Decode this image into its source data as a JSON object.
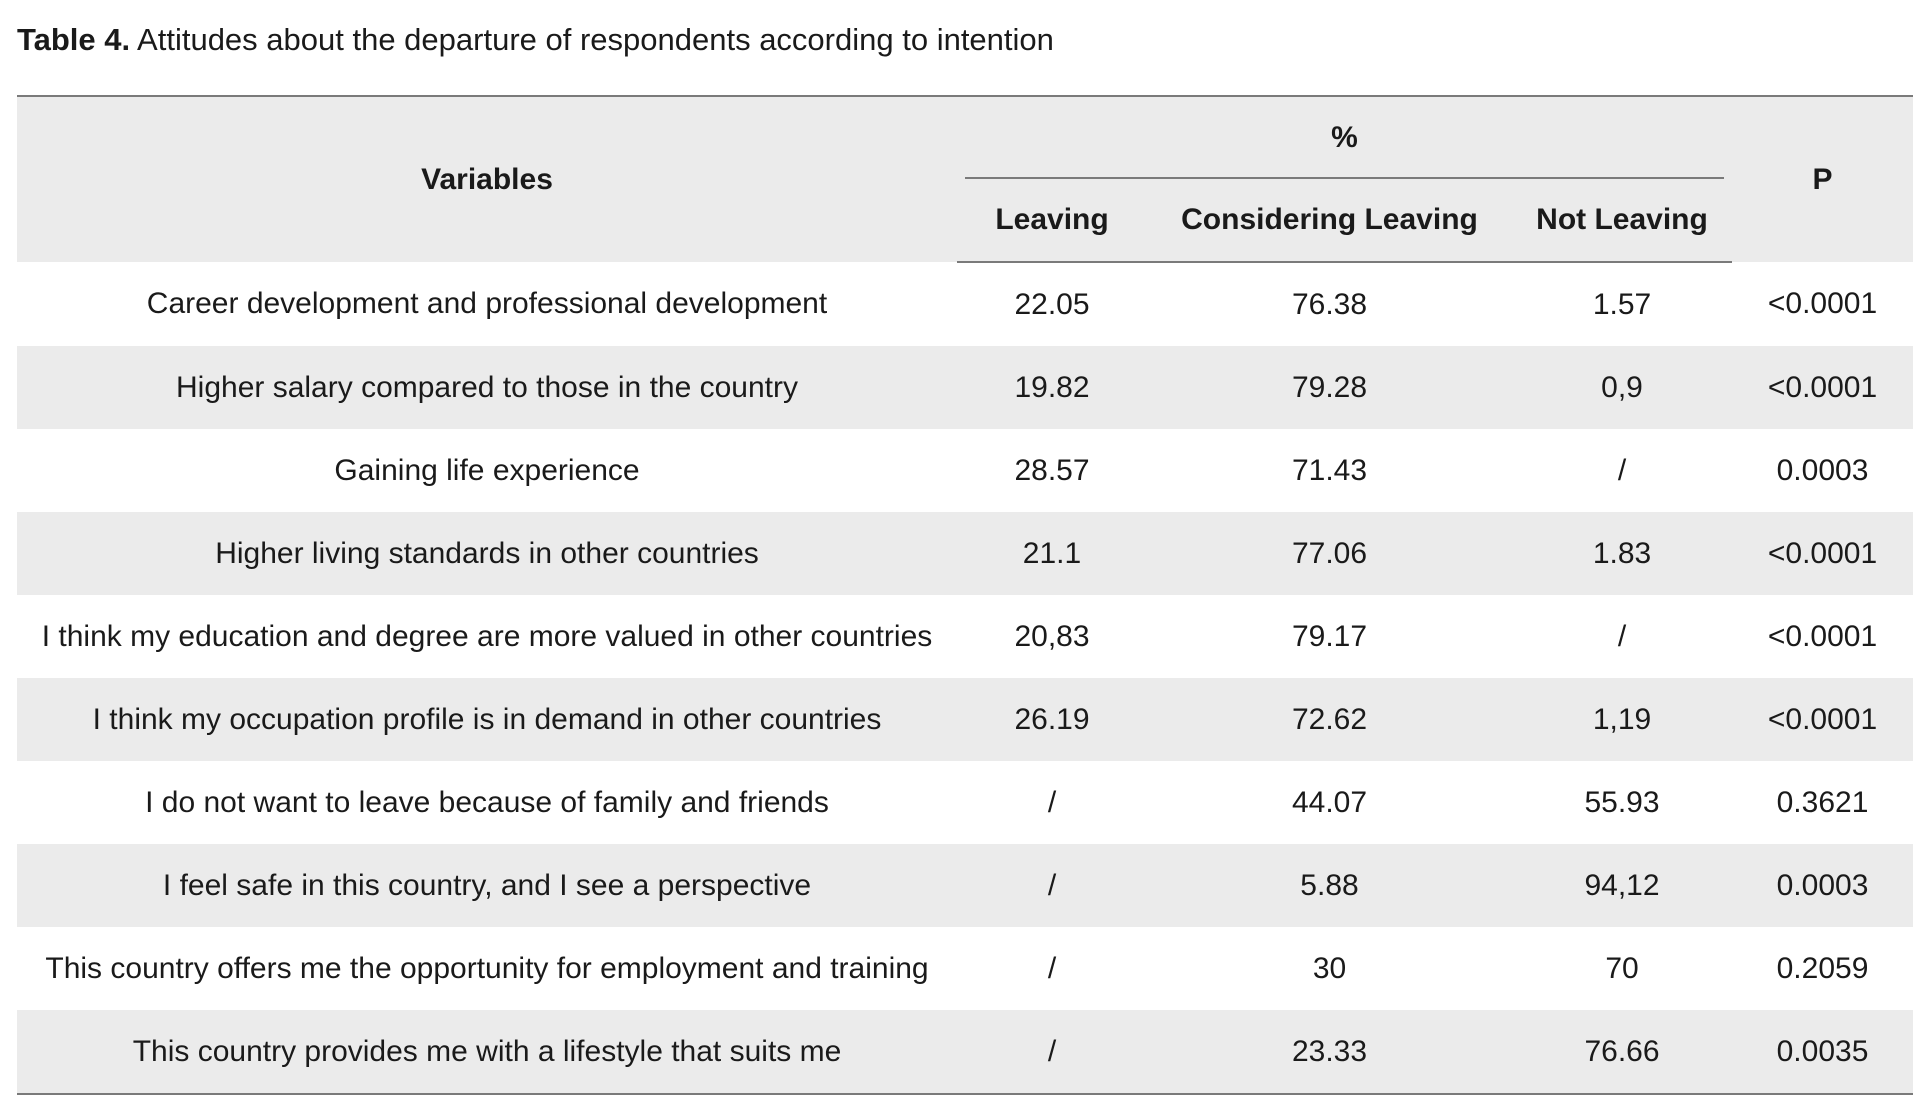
{
  "caption": {
    "label": "Table 4.",
    "text": "Attitudes about the departure of respondents according to intention"
  },
  "table": {
    "headers": {
      "variables": "Variables",
      "percent_group": "%",
      "leaving": "Leaving",
      "considering_leaving": "Considering Leaving",
      "not_leaving": "Not Leaving",
      "p": "P"
    },
    "rows": [
      {
        "variable": "Career development and professional development",
        "leaving": "22.05",
        "considering": "76.38",
        "not_leaving": "1.57",
        "p": "<0.0001"
      },
      {
        "variable": "Higher salary compared to those in the country",
        "leaving": "19.82",
        "considering": "79.28",
        "not_leaving": "0,9",
        "p": "<0.0001"
      },
      {
        "variable": "Gaining life experience",
        "leaving": "28.57",
        "considering": "71.43",
        "not_leaving": "/",
        "p": "0.0003"
      },
      {
        "variable": "Higher living standards in other countries",
        "leaving": "21.1",
        "considering": "77.06",
        "not_leaving": "1.83",
        "p": "<0.0001"
      },
      {
        "variable": "I think my education and degree are more valued in other countries",
        "leaving": "20,83",
        "considering": "79.17",
        "not_leaving": "/",
        "p": "<0.0001"
      },
      {
        "variable": "I think my occupation profile is in demand in other countries",
        "leaving": "26.19",
        "considering": "72.62",
        "not_leaving": "1,19",
        "p": "<0.0001"
      },
      {
        "variable": "I do not want to leave because of family and friends",
        "leaving": "/",
        "considering": "44.07",
        "not_leaving": "55.93",
        "p": "0.3621"
      },
      {
        "variable": "I feel safe in this country, and I see a perspective",
        "leaving": "/",
        "considering": "5.88",
        "not_leaving": "94,12",
        "p": "0.0003"
      },
      {
        "variable": "This country offers me the opportunity for employment and training",
        "leaving": "/",
        "considering": "30",
        "not_leaving": "70",
        "p": "0.2059"
      },
      {
        "variable": "This country provides me with a lifestyle that suits me",
        "leaving": "/",
        "considering": "23.33",
        "not_leaving": "76.66",
        "p": "0.0035"
      }
    ]
  },
  "colors": {
    "shade": "#ebebeb",
    "rule": "#7a7a7a",
    "text": "#1a1a1a"
  }
}
